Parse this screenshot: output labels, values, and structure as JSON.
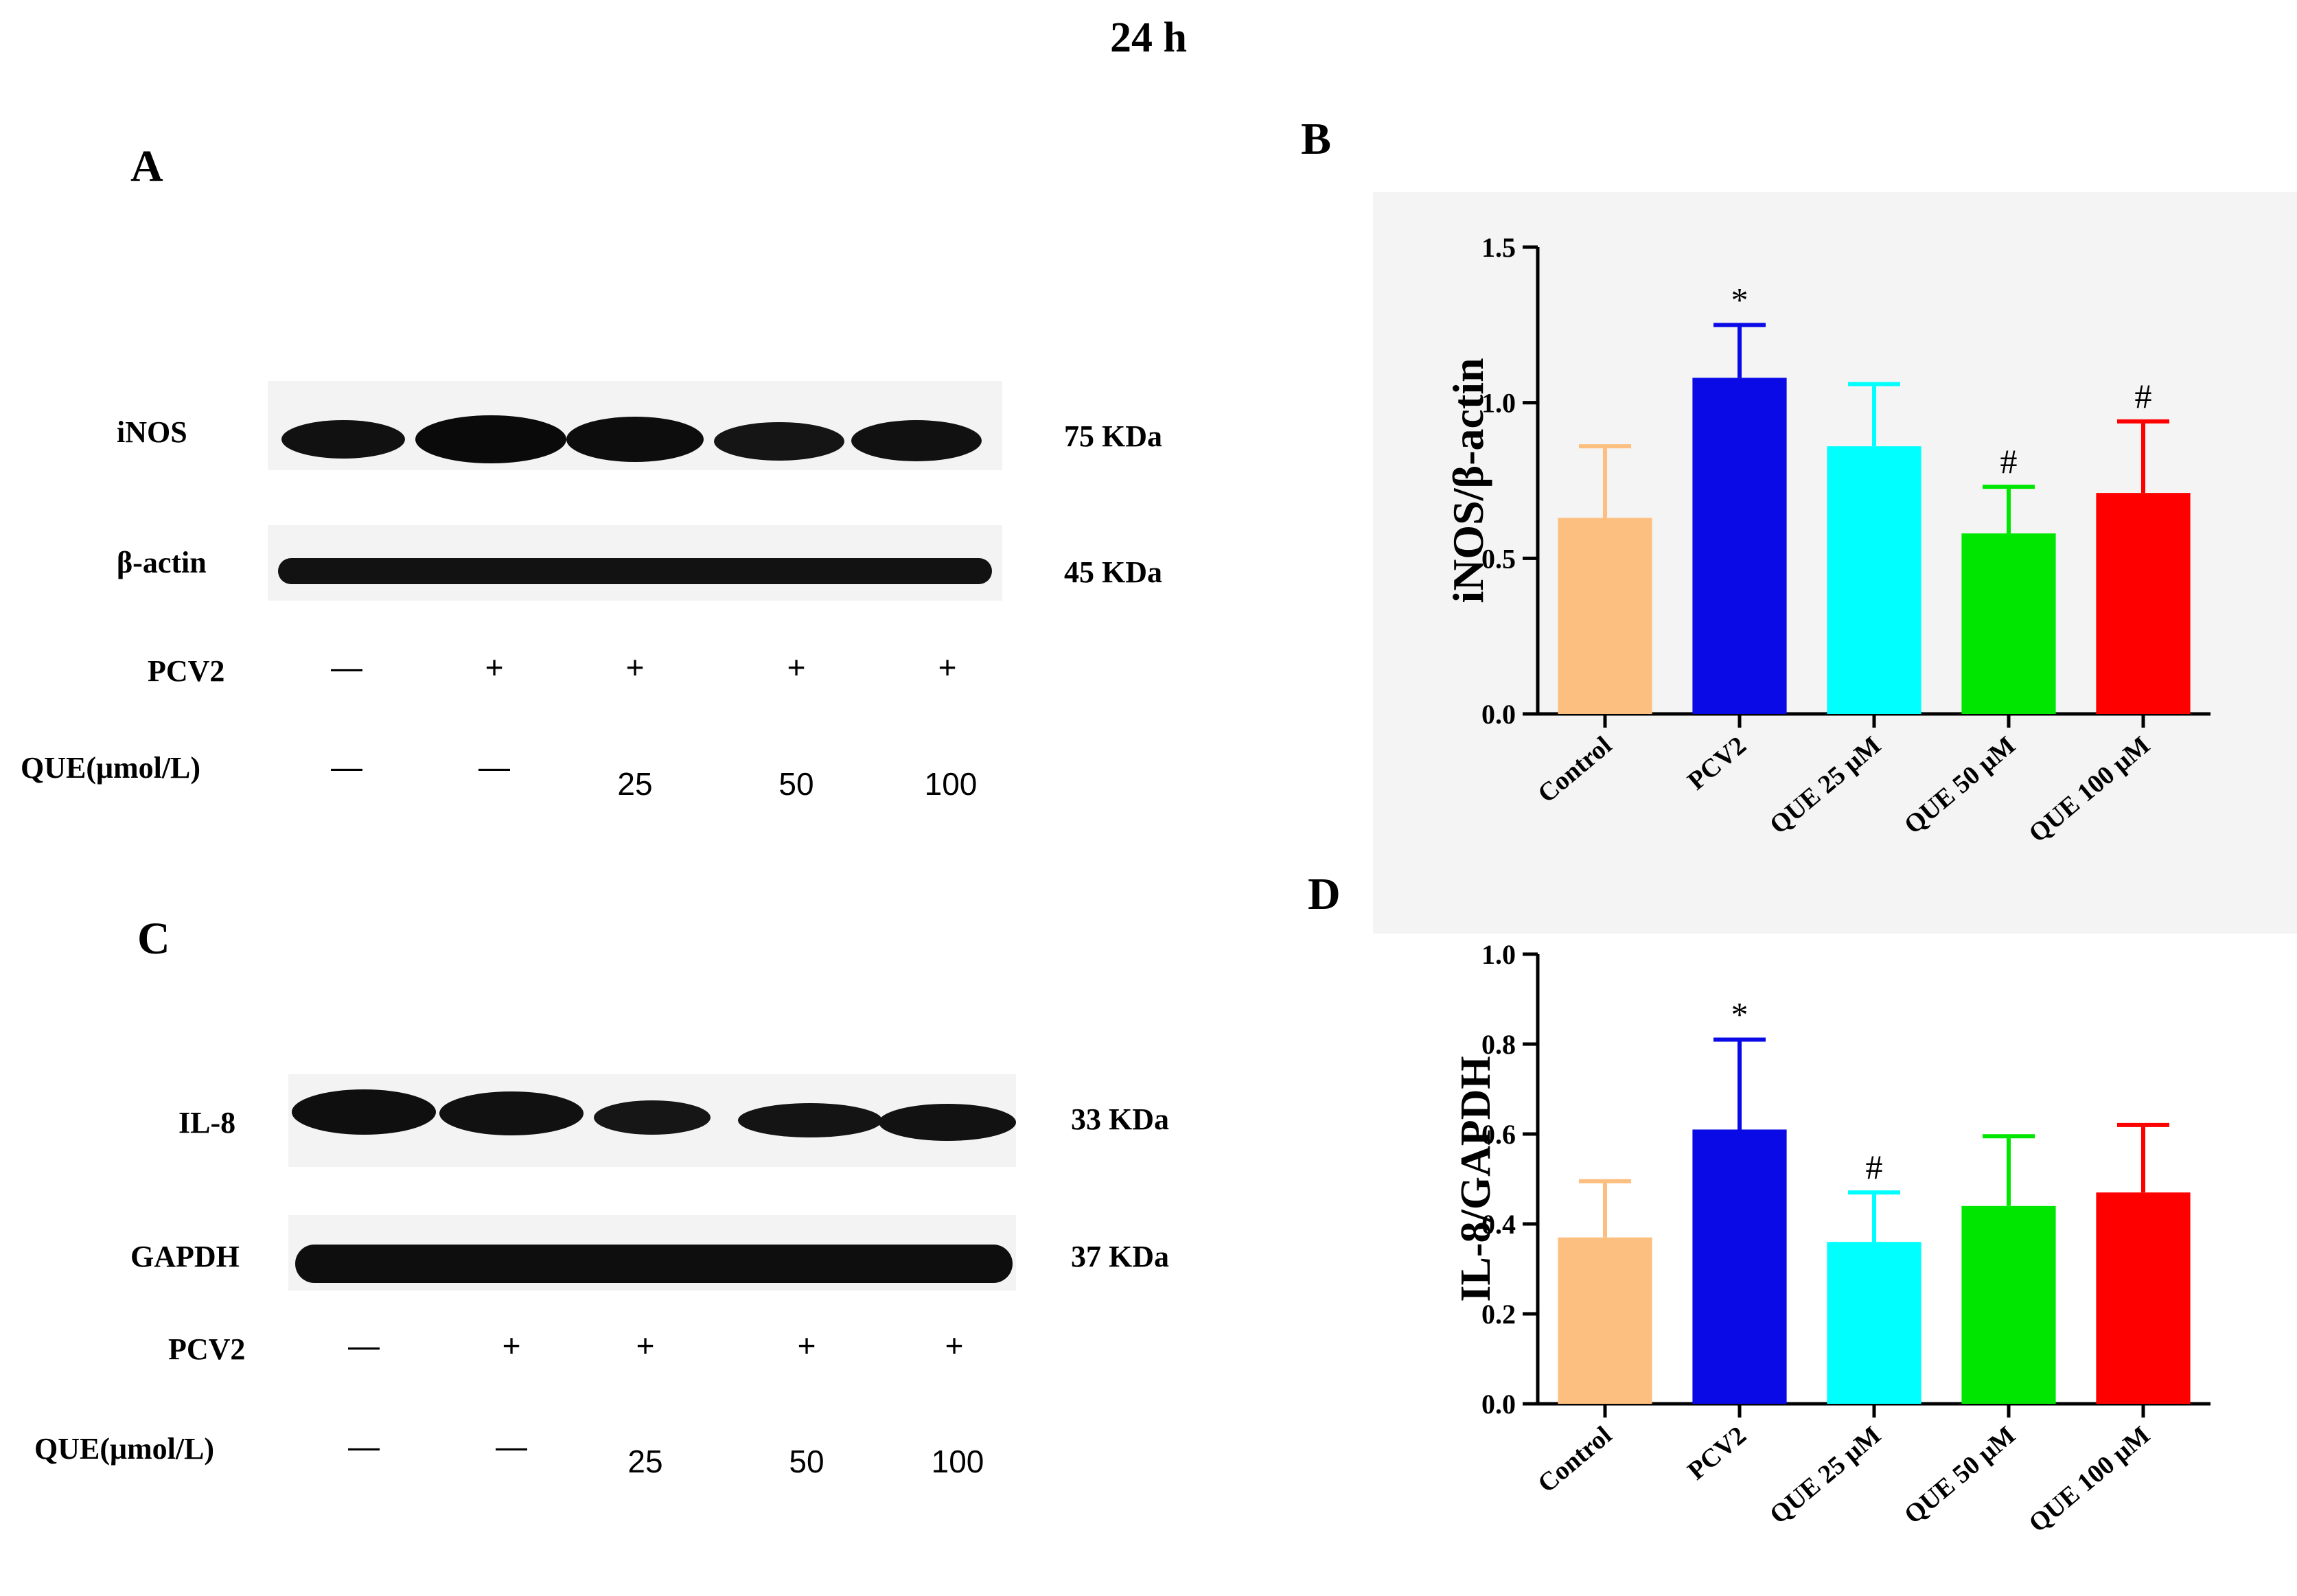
{
  "figure_title": "24 h",
  "panels": {
    "A": {
      "letter": "A",
      "bands": [
        {
          "protein": "iNOS",
          "size": "75 KDa"
        },
        {
          "protein": "β-actin",
          "size": "45 KDa"
        }
      ],
      "pcv2_label": "PCV2",
      "pcv2_values": [
        "—",
        "+",
        "+",
        "+",
        "+"
      ],
      "que_label": "QUE(μmol/L)",
      "que_values": [
        "—",
        "—",
        "25",
        "50",
        "100"
      ]
    },
    "C": {
      "letter": "C",
      "bands": [
        {
          "protein": "IL-8",
          "size": "33 KDa"
        },
        {
          "protein": "GAPDH",
          "size": "37 KDa"
        }
      ],
      "pcv2_label": "PCV2",
      "pcv2_values": [
        "—",
        "+",
        "+",
        "+",
        "+"
      ],
      "que_label": "QUE(μmol/L)",
      "que_values": [
        "—",
        "—",
        "25",
        "50",
        "100"
      ]
    },
    "B": {
      "letter": "B"
    },
    "D": {
      "letter": "D"
    }
  },
  "chart_data": [
    {
      "panel": "B",
      "type": "bar",
      "title": "",
      "xlabel": "",
      "ylabel": "iNOS/β-actin",
      "ylim": [
        0,
        1.5
      ],
      "yticks": [
        0.0,
        0.5,
        1.0,
        1.5
      ],
      "ytick_labels": [
        "0.0",
        "0.5",
        "1.0",
        "1.5"
      ],
      "categories": [
        "Control",
        "PCV2",
        "QUE 25 μM",
        "QUE 50 μM",
        "QUE 100 μM"
      ],
      "values": [
        0.63,
        1.08,
        0.86,
        0.58,
        0.71
      ],
      "errors": [
        0.23,
        0.17,
        0.2,
        0.15,
        0.23
      ],
      "annotations": [
        "",
        "*",
        "",
        "#",
        "#"
      ],
      "colors": [
        "#FDBF80",
        "#0A0AE6",
        "#00FFFF",
        "#00E600",
        "#FF0000"
      ]
    },
    {
      "panel": "D",
      "type": "bar",
      "title": "",
      "xlabel": "",
      "ylabel": "IL-8/GAPDH",
      "ylim": [
        0,
        1.0
      ],
      "yticks": [
        0.0,
        0.2,
        0.4,
        0.6,
        0.8,
        1.0
      ],
      "ytick_labels": [
        "0.0",
        "0.2",
        "0.4",
        "0.6",
        "0.8",
        "1.0"
      ],
      "categories": [
        "Control",
        "PCV2",
        "QUE 25 μM",
        "QUE 50 μM",
        "QUE 100 μM"
      ],
      "values": [
        0.37,
        0.61,
        0.36,
        0.44,
        0.47
      ],
      "errors": [
        0.125,
        0.2,
        0.11,
        0.155,
        0.15
      ],
      "annotations": [
        "",
        "*",
        "#",
        "",
        ""
      ],
      "colors": [
        "#FDBF80",
        "#0A0AE6",
        "#00FFFF",
        "#00E600",
        "#FF0000"
      ]
    }
  ]
}
